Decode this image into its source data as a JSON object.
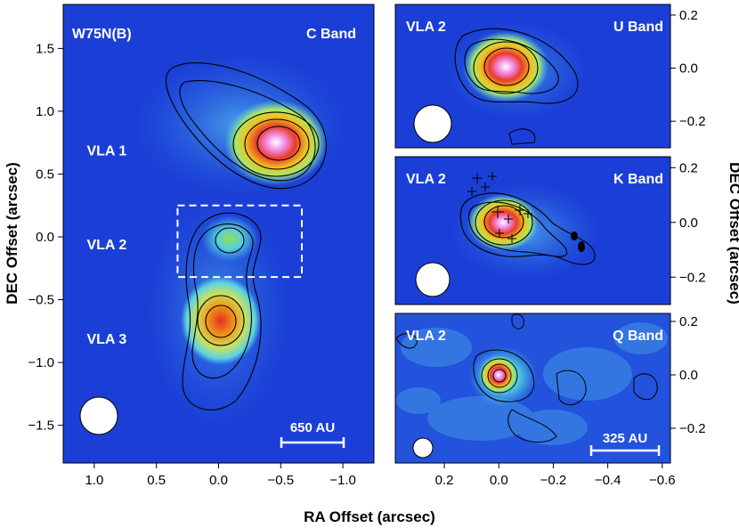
{
  "chart_data": {
    "type": "heatmap",
    "xlabel": "RA Offset (arcsec)",
    "ylabel_left": "DEC Offset (arcsec)",
    "ylabel_right": "DEC Offset (arcsec)",
    "colors": {
      "background": "#1b3fd6",
      "contour": "#000000",
      "beam": "#ffffff",
      "dashed_box": "#ffffff"
    },
    "panels": [
      {
        "id": "main",
        "title": "W75N(B)",
        "band": "C Band",
        "xlim": [
          1.25,
          -1.25
        ],
        "ylim": [
          -1.8,
          1.85
        ],
        "xticks": [
          1.0,
          0.5,
          0.0,
          -0.5,
          -1.0
        ],
        "xtick_labels": [
          "1.0",
          "0.5",
          "0.0",
          "−0.5",
          "−1.0"
        ],
        "yticks": [
          1.5,
          1.0,
          0.5,
          0.0,
          -0.5,
          -1.0,
          -1.5
        ],
        "ytick_labels": [
          "1.5",
          "1.0",
          "0.5",
          "0.0",
          "−0.5",
          "−1.0",
          "−1.5"
        ],
        "sources": [
          {
            "label": "VLA 1",
            "x": -0.5,
            "y": 0.75,
            "label_x": 0.9,
            "label_y": 0.65
          },
          {
            "label": "VLA 2",
            "x": -0.1,
            "y": -0.05,
            "label_x": 0.9,
            "label_y": -0.1
          },
          {
            "label": "VLA 3",
            "x": 0.0,
            "y": -0.7,
            "label_x": 0.9,
            "label_y": -0.85
          }
        ],
        "scale_bar_label": "650 AU",
        "dashed_box": {
          "x": [
            0.33,
            -0.67
          ],
          "y": [
            0.25,
            -0.32
          ]
        }
      },
      {
        "id": "u-band",
        "title": "VLA 2",
        "band": "U Band",
        "ylim": [
          -0.3,
          0.24
        ],
        "yticks": [
          0.2,
          0.0,
          -0.2
        ],
        "ytick_labels": [
          "0.2",
          "0.0",
          "−0.2"
        ]
      },
      {
        "id": "k-band",
        "title": "VLA 2",
        "band": "K Band",
        "ylim": [
          -0.3,
          0.24
        ],
        "yticks": [
          0.2,
          0.0,
          -0.2
        ],
        "ytick_labels": [
          "0.2",
          "0.0",
          "−0.2"
        ]
      },
      {
        "id": "q-band",
        "title": "VLA 2",
        "band": "Q Band",
        "xlim": [
          0.38,
          -0.63
        ],
        "ylim": [
          -0.33,
          0.23
        ],
        "xticks": [
          0.2,
          0.0,
          -0.2,
          -0.4,
          -0.6
        ],
        "xtick_labels": [
          "0.2",
          "0.0",
          "−0.2",
          "−0.4",
          "−0.6"
        ],
        "yticks": [
          0.2,
          0.0,
          -0.2
        ],
        "ytick_labels": [
          "0.2",
          "0.0",
          "−0.2"
        ],
        "scale_bar_label": "325 AU"
      }
    ]
  }
}
